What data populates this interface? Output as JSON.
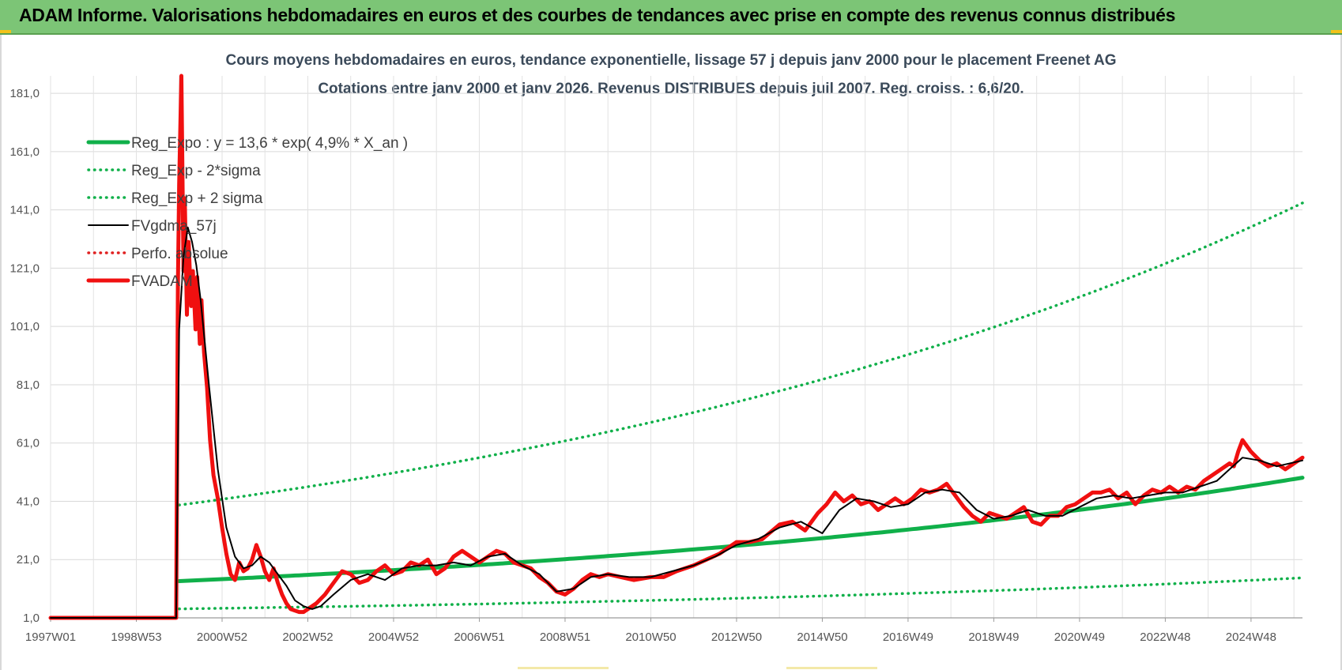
{
  "banner": {
    "title": "ADAM Informe. Valorisations hebdomadaires en euros et des courbes de tendances avec prise en compte des revenus connus distribués"
  },
  "chart_data": {
    "type": "line",
    "title": "Cours moyens hebdomadaires en euros, tendance exponentielle, lissage 57 j depuis janv 2000 pour le placement Freenet AG",
    "subtitle": "Cotations entre janv 2000 et janv 2026. Revenus DISTRIBUES depuis juil 2007. Reg. croiss. : 6,6/20.",
    "xlabel": "",
    "ylabel": "",
    "x_tick_labels": [
      "1997W01",
      "1998W53",
      "2000W52",
      "2002W52",
      "2004W52",
      "2006W51",
      "2008W51",
      "2010W50",
      "2012W50",
      "2014W50",
      "2016W49",
      "2018W49",
      "2020W49",
      "2022W48",
      "2024W48"
    ],
    "x_tick_years": [
      1997.0,
      1999.0,
      2001.0,
      2003.0,
      2005.0,
      2007.0,
      2009.0,
      2011.0,
      2013.0,
      2015.0,
      2017.0,
      2019.0,
      2021.0,
      2023.0,
      2025.0
    ],
    "x_range": [
      1997.0,
      2026.2
    ],
    "y_tick_labels": [
      "1,0",
      "21,0",
      "41,0",
      "61,0",
      "81,0",
      "101,0",
      "121,0",
      "141,0",
      "161,0",
      "181,0"
    ],
    "y_ticks": [
      1,
      21,
      41,
      61,
      81,
      101,
      121,
      141,
      161,
      181
    ],
    "ylim": [
      1,
      187
    ],
    "grid": true,
    "legend_position": "top-left",
    "regression": {
      "start_year": 2000.0,
      "end_year": 2026.2,
      "a": 13.6,
      "rate": 0.049,
      "sigma_factor_low": 0.3,
      "sigma_factor_high": 2.92
    },
    "series": [
      {
        "name": "Reg_Expo : y = 13,6 * exp( 4,9% *  X_an )",
        "style": "solid-thick",
        "color": "#10b04a",
        "x": [
          2000.0,
          2002.0,
          2004.0,
          2006.0,
          2008.0,
          2010.0,
          2012.0,
          2014.0,
          2016.0,
          2018.0,
          2020.0,
          2022.0,
          2024.0,
          2026.2
        ],
        "values": [
          13.6,
          15.0,
          16.5,
          18.2,
          20.0,
          22.1,
          24.3,
          26.8,
          29.6,
          32.6,
          35.9,
          39.5,
          43.6,
          48.6
        ]
      },
      {
        "name": "Reg_Exp - 2*sigma",
        "style": "dotted",
        "color": "#10b04a",
        "x": [
          2000.0,
          2004.0,
          2008.0,
          2012.0,
          2016.0,
          2020.0,
          2024.0,
          2026.2
        ],
        "values": [
          4.1,
          5.0,
          6.0,
          7.3,
          8.9,
          10.8,
          13.1,
          17.2
        ]
      },
      {
        "name": "Reg_Exp + 2 sigma",
        "style": "dotted",
        "color": "#10b04a",
        "x": [
          2000.0,
          2004.0,
          2008.0,
          2012.0,
          2016.0,
          2020.0,
          2024.0,
          2026.2
        ],
        "values": [
          40.0,
          48.5,
          58.7,
          71.2,
          86.3,
          104.6,
          126.8,
          146.0
        ]
      },
      {
        "name": "FVgdma_57j",
        "style": "solid",
        "color": "#000000",
        "x": [
          1997.0,
          1999.93,
          2000.0,
          2000.1,
          2000.2,
          2000.3,
          2000.4,
          2000.5,
          2000.7,
          2000.9,
          2001.1,
          2001.3,
          2001.5,
          2001.7,
          2001.9,
          2002.1,
          2002.3,
          2002.5,
          2002.7,
          2002.9,
          2003.1,
          2003.3,
          2003.6,
          2004.0,
          2004.4,
          2004.8,
          2005.2,
          2005.6,
          2006.0,
          2006.4,
          2006.8,
          2007.2,
          2007.6,
          2008.0,
          2008.4,
          2008.8,
          2009.2,
          2009.6,
          2010.0,
          2010.5,
          2011.0,
          2011.5,
          2012.0,
          2012.5,
          2013.0,
          2013.5,
          2014.0,
          2014.5,
          2015.0,
          2015.4,
          2015.8,
          2016.2,
          2016.6,
          2017.0,
          2017.4,
          2017.8,
          2018.2,
          2018.6,
          2019.0,
          2019.4,
          2019.8,
          2020.2,
          2020.6,
          2021.0,
          2021.4,
          2021.8,
          2022.2,
          2022.6,
          2023.0,
          2023.4,
          2023.8,
          2024.2,
          2024.5,
          2024.8,
          2025.2,
          2025.6,
          2026.2
        ],
        "values": [
          1.0,
          1.0,
          100.0,
          125.0,
          135.0,
          130.0,
          122.0,
          110.0,
          80.0,
          52.0,
          32.0,
          22.0,
          18.0,
          19.0,
          22.0,
          20.0,
          16.0,
          12.0,
          7.0,
          5.0,
          4.0,
          5.0,
          9.0,
          14.0,
          16.0,
          14.0,
          18.0,
          19.0,
          19.0,
          20.0,
          19.0,
          22.0,
          23.0,
          19.0,
          16.0,
          10.0,
          11.0,
          15.0,
          16.0,
          15.0,
          15.0,
          17.0,
          19.0,
          22.0,
          26.0,
          28.0,
          32.0,
          34.0,
          30.0,
          38.0,
          42.0,
          41.0,
          39.0,
          40.0,
          44.0,
          45.0,
          44.0,
          38.0,
          35.0,
          36.0,
          38.0,
          36.0,
          36.0,
          39.0,
          42.0,
          43.0,
          42.0,
          43.0,
          44.0,
          44.0,
          46.0,
          48.0,
          52.0,
          56.0,
          55.0,
          53.0,
          55.0
        ]
      },
      {
        "name": "Perfo. absolue",
        "style": "dotted",
        "color": "#e02020",
        "x": [
          1997.0,
          1999.93
        ],
        "values": [
          1.0,
          1.0
        ]
      },
      {
        "name": "FVADAM",
        "style": "solid-thick",
        "color": "#f01010",
        "x": [
          1997.0,
          1999.93,
          1999.97,
          2000.0,
          2000.05,
          2000.1,
          2000.13,
          2000.18,
          2000.22,
          2000.28,
          2000.32,
          2000.38,
          2000.42,
          2000.48,
          2000.52,
          2000.58,
          2000.65,
          2000.72,
          2000.8,
          2000.9,
          2001.0,
          2001.1,
          2001.2,
          2001.3,
          2001.4,
          2001.5,
          2001.6,
          2001.7,
          2001.8,
          2001.9,
          2002.0,
          2002.1,
          2002.2,
          2002.3,
          2002.4,
          2002.5,
          2002.6,
          2002.7,
          2002.8,
          2002.9,
          2003.0,
          2003.2,
          2003.4,
          2003.6,
          2003.8,
          2004.0,
          2004.2,
          2004.4,
          2004.6,
          2004.8,
          2005.0,
          2005.2,
          2005.4,
          2005.6,
          2005.8,
          2006.0,
          2006.2,
          2006.4,
          2006.6,
          2006.8,
          2007.0,
          2007.2,
          2007.4,
          2007.6,
          2007.8,
          2008.0,
          2008.2,
          2008.4,
          2008.6,
          2008.8,
          2009.0,
          2009.2,
          2009.4,
          2009.6,
          2009.8,
          2010.0,
          2010.3,
          2010.6,
          2011.0,
          2011.3,
          2011.6,
          2012.0,
          2012.3,
          2012.6,
          2013.0,
          2013.3,
          2013.6,
          2014.0,
          2014.3,
          2014.6,
          2014.9,
          2015.1,
          2015.3,
          2015.5,
          2015.7,
          2015.9,
          2016.1,
          2016.3,
          2016.5,
          2016.7,
          2016.9,
          2017.1,
          2017.3,
          2017.5,
          2017.7,
          2017.9,
          2018.1,
          2018.3,
          2018.5,
          2018.7,
          2018.9,
          2019.1,
          2019.3,
          2019.5,
          2019.7,
          2019.9,
          2020.1,
          2020.3,
          2020.5,
          2020.7,
          2020.9,
          2021.1,
          2021.3,
          2021.5,
          2021.7,
          2021.9,
          2022.1,
          2022.3,
          2022.5,
          2022.7,
          2022.9,
          2023.1,
          2023.3,
          2023.5,
          2023.7,
          2023.9,
          2024.1,
          2024.3,
          2024.5,
          2024.6,
          2024.7,
          2024.8,
          2025.0,
          2025.2,
          2025.4,
          2025.6,
          2025.8,
          2026.0,
          2026.2
        ],
        "values": [
          1.0,
          1.0,
          115.0,
          150.0,
          187.0,
          120.0,
          145.0,
          105.0,
          130.0,
          108.0,
          120.0,
          100.0,
          118.0,
          95.0,
          110.0,
          92.0,
          80.0,
          62.0,
          50.0,
          42.0,
          32.0,
          23.0,
          16.0,
          14.0,
          20.0,
          17.0,
          18.0,
          21.0,
          26.0,
          22.0,
          17.0,
          14.0,
          18.0,
          13.0,
          9.0,
          6.0,
          4.0,
          3.5,
          3.0,
          3.0,
          4.0,
          6.0,
          9.0,
          13.0,
          17.0,
          16.0,
          13.0,
          14.0,
          17.0,
          19.0,
          16.0,
          17.0,
          20.0,
          19.0,
          21.0,
          16.0,
          18.0,
          22.0,
          24.0,
          22.0,
          20.0,
          22.0,
          24.0,
          23.0,
          20.0,
          19.0,
          18.0,
          15.0,
          13.0,
          10.0,
          9.0,
          11.0,
          14.0,
          16.0,
          15.0,
          16.0,
          15.0,
          14.0,
          15.0,
          15.0,
          17.0,
          19.0,
          21.0,
          23.0,
          27.0,
          27.0,
          28.0,
          33.0,
          34.0,
          31.0,
          37.0,
          40.0,
          44.0,
          41.0,
          43.0,
          40.0,
          41.0,
          38.0,
          40.0,
          42.0,
          40.0,
          42.0,
          45.0,
          44.0,
          45.0,
          47.0,
          43.0,
          39.0,
          36.0,
          34.0,
          37.0,
          36.0,
          35.0,
          37.0,
          39.0,
          34.0,
          33.0,
          36.0,
          36.0,
          39.0,
          40.0,
          42.0,
          44.0,
          44.0,
          45.0,
          42.0,
          44.0,
          40.0,
          43.0,
          45.0,
          44.0,
          46.0,
          44.0,
          46.0,
          45.0,
          48.0,
          50.0,
          52.0,
          54.0,
          53.0,
          58.0,
          62.0,
          58.0,
          55.0,
          53.0,
          54.0,
          52.0,
          54.0,
          56.0
        ]
      }
    ]
  }
}
